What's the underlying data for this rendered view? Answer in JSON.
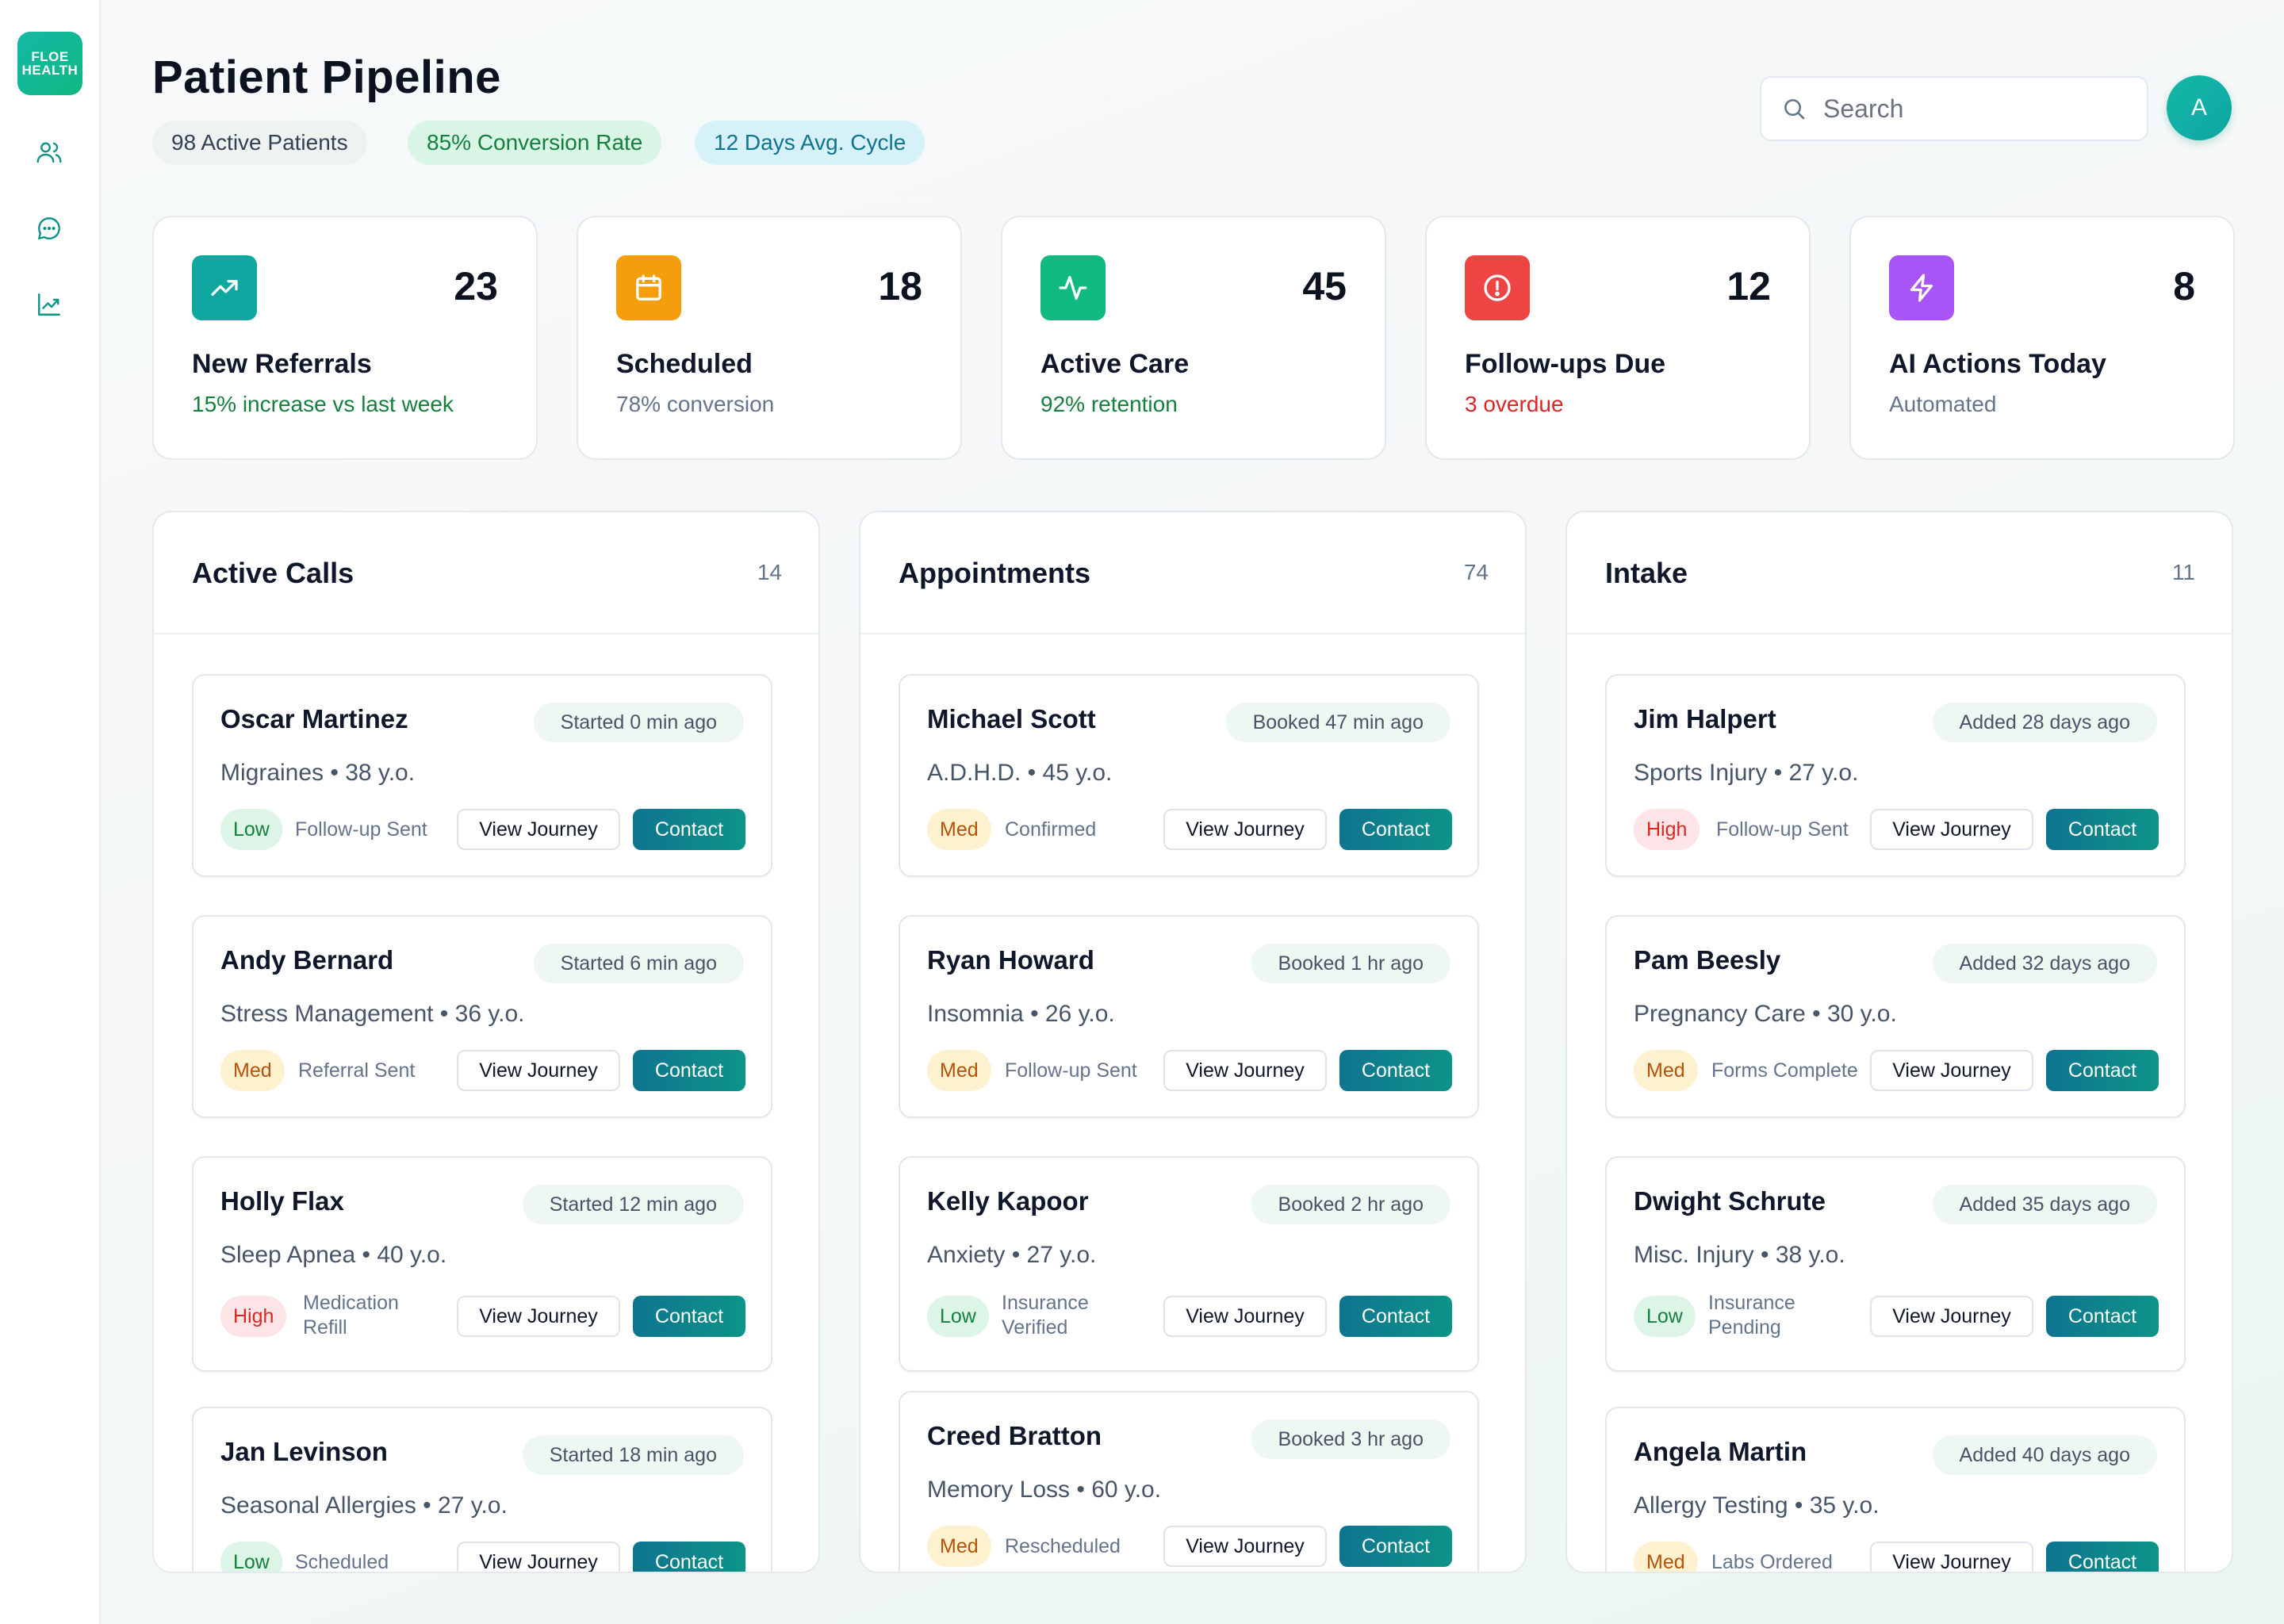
{
  "brand": {
    "logo_text_line1": "FLOE",
    "logo_text_line2": "HEALTH"
  },
  "sidebar": {
    "icons": [
      "users-icon",
      "chat-icon",
      "trending-icon"
    ]
  },
  "header": {
    "title": "Patient Pipeline",
    "chips": {
      "patients": "98 Active Patients",
      "conversion": "85% Conversion Rate",
      "cycle": "12 Days Avg. Cycle"
    },
    "search_placeholder": "Search",
    "avatar_initial": "A"
  },
  "stats": [
    {
      "icon": "trending-up-icon",
      "value": "23",
      "label": "New Referrals",
      "sub": "15% increase vs last week",
      "sub_color": "#15803d",
      "icon_bg": "#0fa7a0"
    },
    {
      "icon": "calendar-icon",
      "value": "18",
      "label": "Scheduled",
      "sub": "78% conversion",
      "sub_color": "#64748b",
      "icon_bg": "#f59e0b"
    },
    {
      "icon": "activity-icon",
      "value": "45",
      "label": "Active Care",
      "sub": "92% retention",
      "sub_color": "#15803d",
      "icon_bg": "#10b981"
    },
    {
      "icon": "alert-circle-icon",
      "value": "12",
      "label": "Follow-ups Due",
      "sub": "3 overdue",
      "sub_color": "#dc2626",
      "icon_bg": "#ef4444"
    },
    {
      "icon": "lightning-icon",
      "value": "8",
      "label": "AI Actions Today",
      "sub": "Automated",
      "sub_color": "#64748b",
      "icon_bg": "#a855f7"
    }
  ],
  "columns": [
    {
      "title": "Active Calls",
      "count": "14",
      "cards": [
        {
          "name": "Oscar Martinez",
          "time": "Started 0 min ago",
          "condition": "Migraines • 38 y.o.",
          "priority": "Low",
          "status": "Follow-up Sent"
        },
        {
          "name": "Andy Bernard",
          "time": "Started 6 min ago",
          "condition": "Stress Management • 36 y.o.",
          "priority": "Med",
          "status": "Referral Sent"
        },
        {
          "name": "Holly Flax",
          "time": "Started 12 min ago",
          "condition": "Sleep Apnea • 40 y.o.",
          "priority": "High",
          "status": "Medication Refill"
        },
        {
          "name": "Jan Levinson",
          "time": "Started 18 min ago",
          "condition": "Seasonal Allergies • 27 y.o.",
          "priority": "Low",
          "status": "Scheduled"
        }
      ]
    },
    {
      "title": "Appointments",
      "count": "74",
      "cards": [
        {
          "name": "Michael Scott",
          "time": "Booked 47 min ago",
          "condition": "A.D.H.D. • 45 y.o.",
          "priority": "Med",
          "status": "Confirmed"
        },
        {
          "name": "Ryan Howard",
          "time": "Booked 1 hr ago",
          "condition": "Insomnia • 26 y.o.",
          "priority": "Med",
          "status": "Follow-up Sent"
        },
        {
          "name": "Kelly Kapoor",
          "time": "Booked 2 hr ago",
          "condition": "Anxiety • 27 y.o.",
          "priority": "Low",
          "status": "Insurance Verified"
        },
        {
          "name": "Creed Bratton",
          "time": "Booked 3 hr ago",
          "condition": "Memory Loss • 60 y.o.",
          "priority": "Med",
          "status": "Rescheduled"
        }
      ]
    },
    {
      "title": "Intake",
      "count": "11",
      "cards": [
        {
          "name": "Jim Halpert",
          "time": "Added 28 days ago",
          "condition": "Sports Injury • 27 y.o.",
          "priority": "High",
          "status": "Follow-up Sent"
        },
        {
          "name": "Pam Beesly",
          "time": "Added 32 days ago",
          "condition": "Pregnancy Care • 30 y.o.",
          "priority": "Med",
          "status": "Forms Complete"
        },
        {
          "name": "Dwight Schrute",
          "time": "Added 35 days ago",
          "condition": "Misc. Injury • 38 y.o.",
          "priority": "Low",
          "status": "Insurance Pending"
        },
        {
          "name": "Angela Martin",
          "time": "Added 40 days ago",
          "condition": "Allergy Testing • 35 y.o.",
          "priority": "Med",
          "status": "Labs Ordered"
        }
      ]
    }
  ],
  "actions": {
    "view_label": "View Journey",
    "contact_label": "Contact"
  }
}
